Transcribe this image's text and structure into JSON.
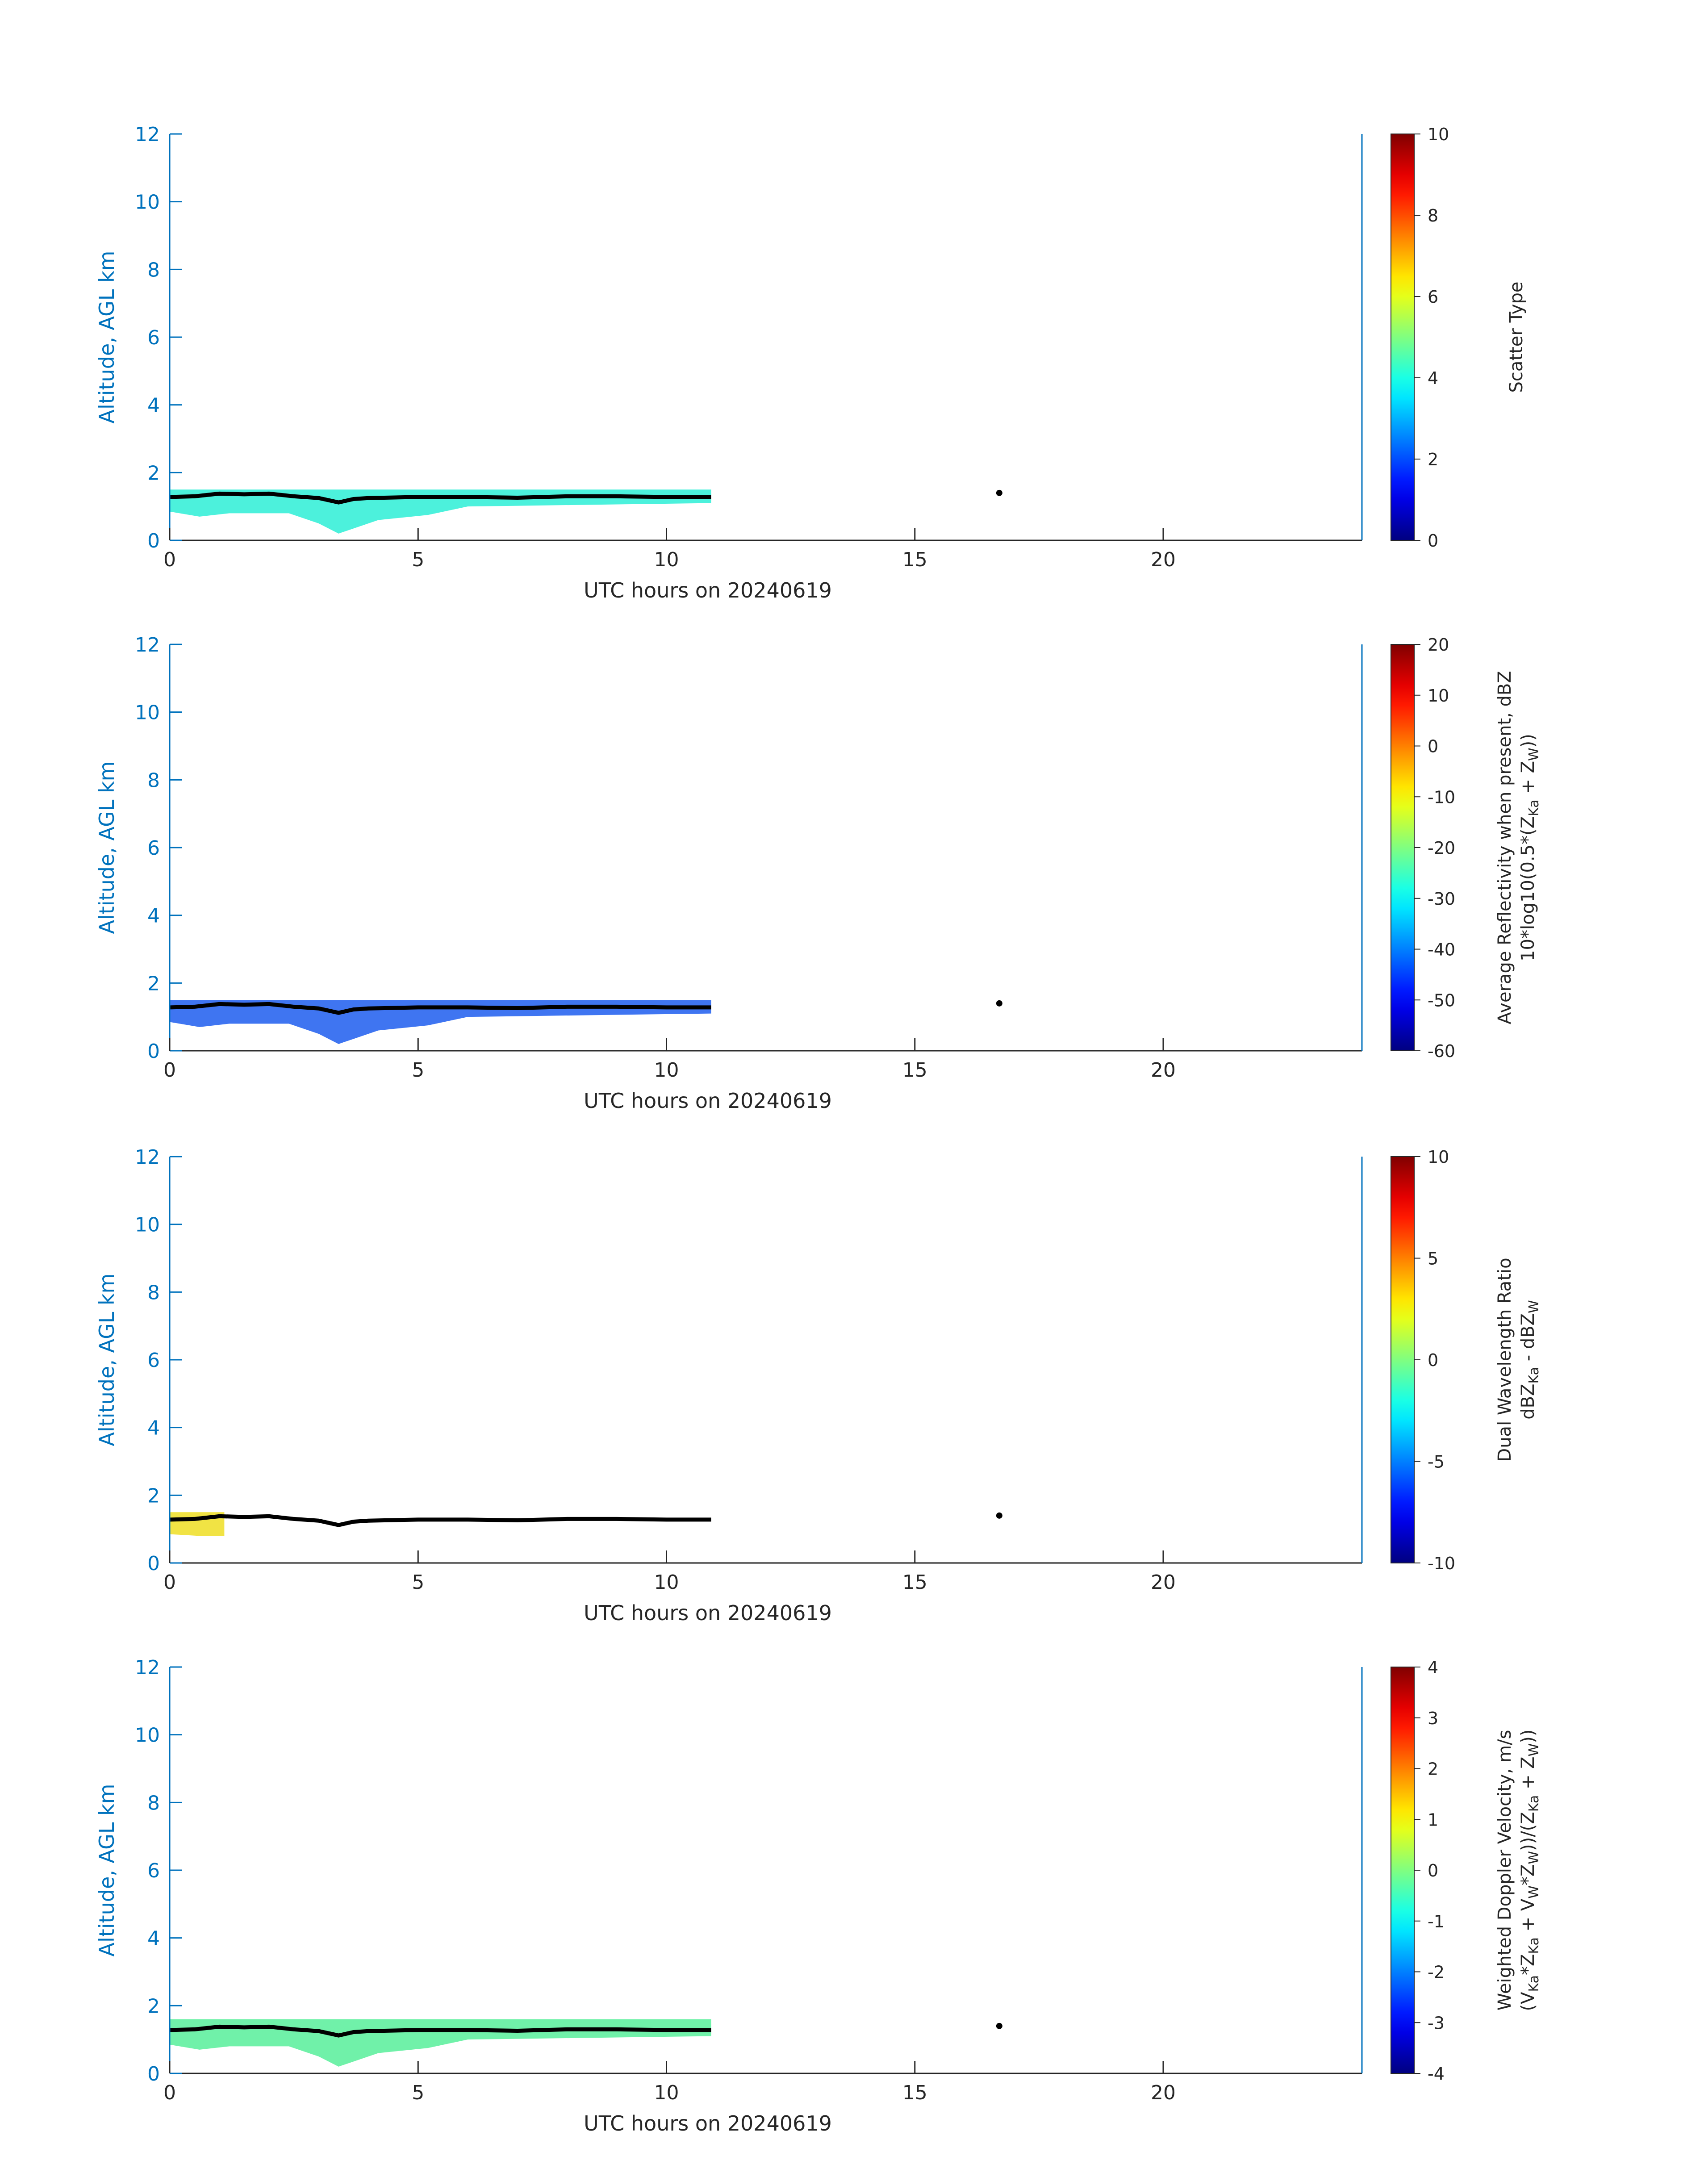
{
  "colors": {
    "axis_left": "#0072bd",
    "axis_text": "#262626",
    "trace": "#000000"
  },
  "colormap": "jet",
  "chart_data": [
    {
      "type": "heatmap",
      "xlabel": "UTC hours on 20240619",
      "ylabel": "Altitude, AGL km",
      "xlim": [
        0,
        24
      ],
      "ylim": [
        0,
        12
      ],
      "xticks": [
        "0",
        "5",
        "10",
        "15",
        "20"
      ],
      "yticks": [
        "0",
        "2",
        "4",
        "6",
        "8",
        "10",
        "12"
      ],
      "colorbar": {
        "label_lines": [
          "Scatter Type"
        ],
        "clim": [
          0,
          10
        ],
        "ticks": [
          "0",
          "2",
          "4",
          "6",
          "8",
          "10"
        ],
        "tick_values": [
          0,
          2,
          4,
          6,
          8,
          10
        ]
      },
      "echo_color": "#38f0d8",
      "echo_extent_hours": [
        0,
        10.9
      ],
      "echo_top_km": 1.5,
      "echo_bottom_km": 0.2
    },
    {
      "type": "heatmap",
      "xlabel": "UTC hours on 20240619",
      "ylabel": "Altitude, AGL km",
      "xlim": [
        0,
        24
      ],
      "ylim": [
        0,
        12
      ],
      "xticks": [
        "0",
        "5",
        "10",
        "15",
        "20"
      ],
      "yticks": [
        "0",
        "2",
        "4",
        "6",
        "8",
        "10",
        "12"
      ],
      "colorbar": {
        "label_lines": [
          "Average Reflectivity when present, dBZ",
          "10*log10(0.5*(Z<sub>Ka</sub> + Z<sub>W</sub>))"
        ],
        "clim": [
          -60,
          20
        ],
        "ticks": [
          "-60",
          "-50",
          "-40",
          "-30",
          "-20",
          "-10",
          "0",
          "10",
          "20"
        ],
        "tick_values": [
          -60,
          -50,
          -40,
          -30,
          -20,
          -10,
          0,
          10,
          20
        ]
      },
      "echo_color": "#2a66f0",
      "echo_extent_hours": [
        0,
        10.9
      ],
      "echo_top_km": 1.5,
      "echo_bottom_km": 0.2
    },
    {
      "type": "heatmap",
      "xlabel": "UTC hours on 20240619",
      "ylabel": "Altitude, AGL km",
      "xlim": [
        0,
        24
      ],
      "ylim": [
        0,
        12
      ],
      "xticks": [
        "0",
        "5",
        "10",
        "15",
        "20"
      ],
      "yticks": [
        "0",
        "2",
        "4",
        "6",
        "8",
        "10",
        "12"
      ],
      "colorbar": {
        "label_lines": [
          "Dual Wavelength Ratio",
          "dBZ<sub>Ka</sub> - dBZ<sub>W</sub>"
        ],
        "clim": [
          -10,
          10
        ],
        "ticks": [
          "-10",
          "-5",
          "0",
          "5",
          "10"
        ],
        "tick_values": [
          -10,
          -5,
          0,
          5,
          10
        ]
      },
      "echo_color": "#f0e030",
      "echo_extent_hours": [
        0,
        1.1
      ],
      "echo_top_km": 1.5,
      "echo_bottom_km": 0.8
    },
    {
      "type": "heatmap",
      "xlabel": "UTC hours on 20240619",
      "ylabel": "Altitude, AGL km",
      "xlim": [
        0,
        24
      ],
      "ylim": [
        0,
        12
      ],
      "xticks": [
        "0",
        "5",
        "10",
        "15",
        "20"
      ],
      "yticks": [
        "0",
        "2",
        "4",
        "6",
        "8",
        "10",
        "12"
      ],
      "colorbar": {
        "label_lines": [
          "Weighted Doppler Velocity, m/s",
          "(V<sub>Ka</sub>*Z<sub>Ka</sub> + V<sub>W</sub>*Z<sub>W</sub>))/(Z<sub>Ka</sub> + Z<sub>W</sub>))"
        ],
        "clim": [
          -4,
          4
        ],
        "ticks": [
          "-4",
          "-3",
          "-2",
          "-1",
          "0",
          "1",
          "2",
          "3",
          "4"
        ],
        "tick_values": [
          -4,
          -3,
          -2,
          -1,
          0,
          1,
          2,
          3,
          4
        ]
      },
      "echo_color": "#60f0a0",
      "echo_extent_hours": [
        0,
        10.9
      ],
      "echo_top_km": 1.6,
      "echo_bottom_km": 0.2
    }
  ],
  "cloud_base_trace": {
    "hours": [
      0,
      0.5,
      1,
      1.5,
      2,
      2.5,
      3,
      3.4,
      3.7,
      4,
      5,
      6,
      7,
      8,
      9,
      10,
      10.9
    ],
    "altitude_km": [
      1.28,
      1.3,
      1.38,
      1.36,
      1.38,
      1.3,
      1.25,
      1.12,
      1.22,
      1.25,
      1.28,
      1.28,
      1.26,
      1.3,
      1.3,
      1.28,
      1.28
    ],
    "isolated_point": {
      "hour": 16.7,
      "altitude_km": 1.4
    }
  }
}
